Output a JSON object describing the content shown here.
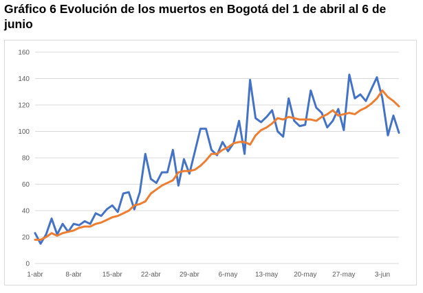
{
  "title": "Gráfico 6 Evolución de los muertos en Bogotá del 1 de abril al 6 de junio",
  "chart_data": {
    "type": "line",
    "title": "Gráfico 6 Evolución de los muertos en Bogotá del 1 de abril al 6 de junio",
    "xlabel": "",
    "ylabel": "",
    "ylim": [
      0,
      160
    ],
    "yticks": [
      0,
      20,
      40,
      60,
      80,
      100,
      120,
      140,
      160
    ],
    "grid": true,
    "legend": "none",
    "x_tick_labels": [
      "1-abr",
      "8-abr",
      "15-abr",
      "22-abr",
      "29-abr",
      "6-may",
      "13-may",
      "20-may",
      "27-may",
      "3-jun"
    ],
    "x_tick_index": [
      0,
      7,
      14,
      21,
      28,
      35,
      42,
      49,
      56,
      63
    ],
    "series": [
      {
        "color": "#4472c4",
        "values": [
          23,
          15,
          22,
          34,
          22,
          30,
          24,
          30,
          29,
          32,
          30,
          38,
          36,
          41,
          44,
          39,
          53,
          54,
          41,
          54,
          83,
          64,
          61,
          69,
          69,
          86,
          59,
          79,
          68,
          85,
          102,
          102,
          86,
          82,
          92,
          85,
          91,
          108,
          83,
          139,
          110,
          107,
          111,
          116,
          100,
          96,
          125,
          108,
          104,
          105,
          131,
          118,
          114,
          103,
          108,
          117,
          101,
          143,
          125,
          128,
          123,
          132,
          141,
          125,
          97,
          112,
          99
        ]
      },
      {
        "color": "#ed7d31",
        "values": [
          18,
          18,
          20,
          23,
          21,
          23,
          24,
          25,
          27,
          28,
          28,
          30,
          31,
          33,
          35,
          36,
          38,
          40,
          44,
          45,
          47,
          53,
          56,
          59,
          61,
          63,
          69,
          70,
          70,
          71,
          74,
          78,
          83,
          83,
          86,
          88,
          91,
          92,
          92,
          90,
          97,
          101,
          103,
          106,
          110,
          109,
          111,
          110,
          109,
          109,
          109,
          108,
          111,
          113,
          116,
          112,
          113,
          114,
          113,
          116,
          118,
          121,
          125,
          131,
          126,
          123,
          119
        ]
      }
    ]
  }
}
